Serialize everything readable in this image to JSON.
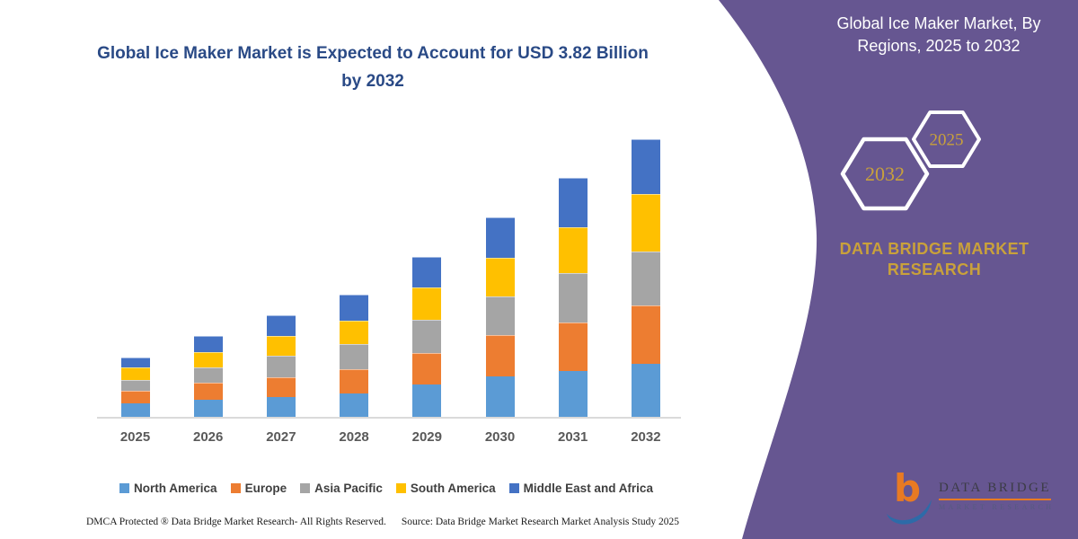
{
  "header": {
    "chart_title": "Global Ice Maker Market is Expected to Account for USD 3.82 Billion by 2032",
    "panel_title": "Global Ice Maker Market, By Regions, 2025 to 2032"
  },
  "panel": {
    "bg_color": "#665691",
    "accent_gold": "#C9A13B",
    "hexagons": {
      "large_year": "2032",
      "small_year": "2025"
    },
    "brand_text": "DATA BRIDGE MARKET RESEARCH",
    "logo": {
      "mark": "b",
      "name": "DATA BRIDGE",
      "subtitle": "MARKET RESEARCH"
    }
  },
  "chart_data": {
    "type": "bar",
    "stacked": true,
    "title": "Global Ice Maker Market is Expected to Account for USD 3.82 Billion by 2032",
    "unit": "USD Billion",
    "xlabel": "",
    "ylabel": "",
    "ylim": [
      0,
      4
    ],
    "grid": false,
    "legend_position": "bottom",
    "categories": [
      "2025",
      "2026",
      "2027",
      "2028",
      "2029",
      "2030",
      "2031",
      "2032"
    ],
    "series": [
      {
        "name": "North America",
        "color": "#5B9BD5",
        "values": [
          0.19,
          0.24,
          0.28,
          0.33,
          0.45,
          0.56,
          0.63,
          0.73
        ]
      },
      {
        "name": "Europe",
        "color": "#ED7D31",
        "values": [
          0.17,
          0.23,
          0.27,
          0.33,
          0.43,
          0.57,
          0.67,
          0.8
        ]
      },
      {
        "name": "Asia Pacific",
        "color": "#A5A5A5",
        "values": [
          0.15,
          0.21,
          0.29,
          0.34,
          0.46,
          0.53,
          0.68,
          0.74
        ]
      },
      {
        "name": "South America",
        "color": "#FFC000",
        "values": [
          0.17,
          0.21,
          0.27,
          0.33,
          0.44,
          0.53,
          0.63,
          0.79
        ]
      },
      {
        "name": "Middle East and Africa",
        "color": "#4472C4",
        "values": [
          0.14,
          0.23,
          0.29,
          0.35,
          0.42,
          0.55,
          0.68,
          0.76
        ]
      }
    ],
    "totals": [
      0.82,
      1.12,
      1.4,
      1.68,
      2.2,
      2.74,
      3.29,
      3.82
    ]
  },
  "footer": {
    "left": "DMCA Protected ® Data Bridge Market Research- All Rights Reserved.",
    "right": "Source: Data Bridge Market Research Market Analysis Study 2025"
  }
}
